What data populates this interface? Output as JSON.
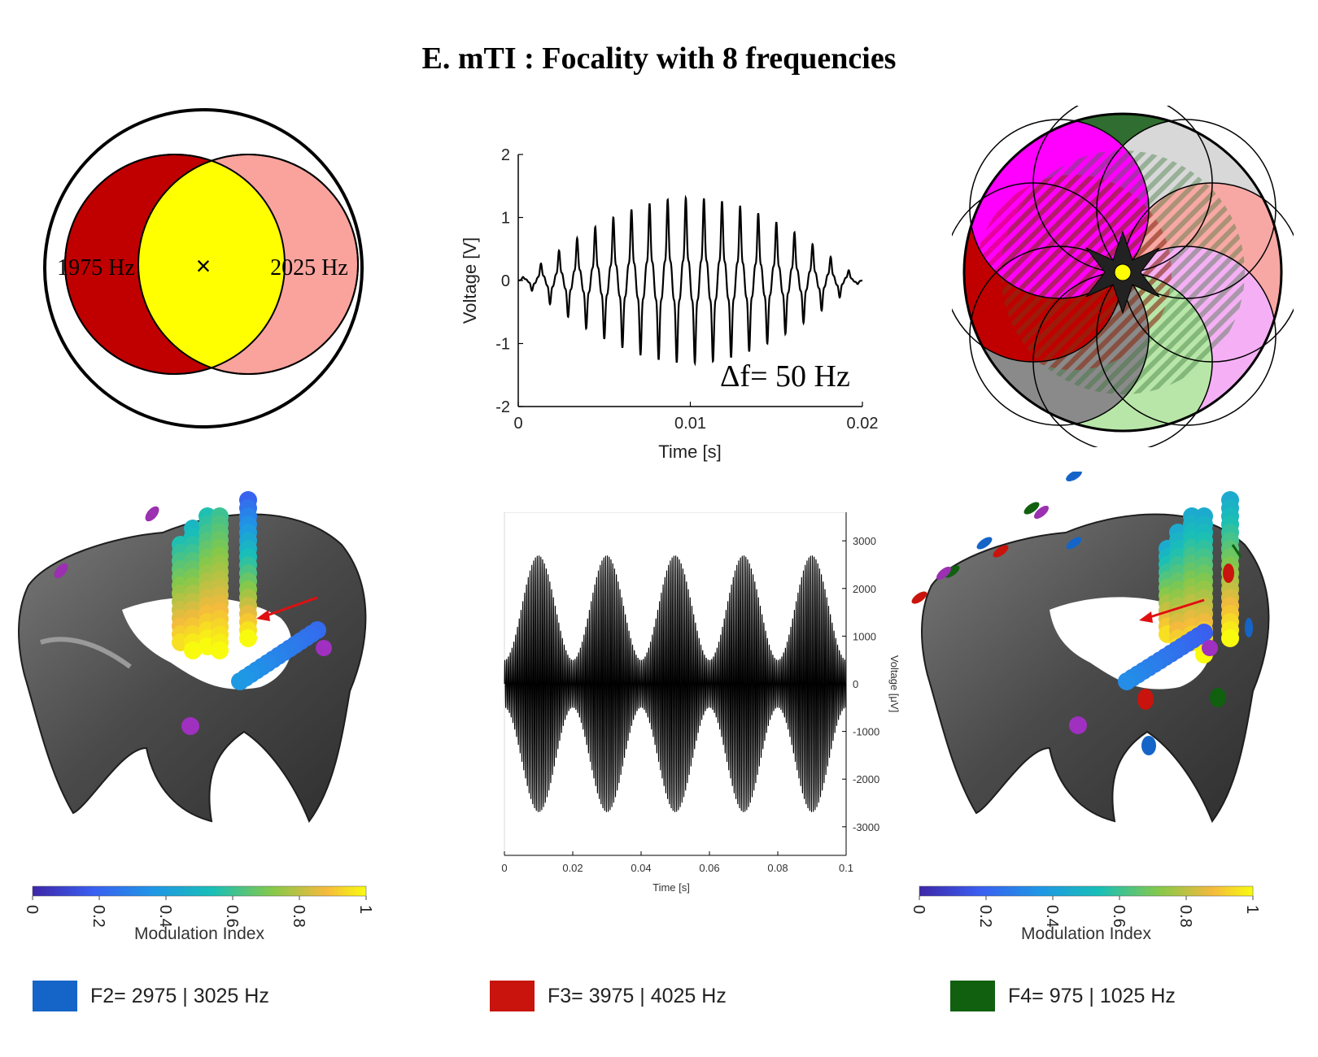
{
  "title": "E. mTI : Focality with 8 frequencies",
  "venn": {
    "left_label": "1975 Hz",
    "right_label": "2025 Hz",
    "center_mark": "×",
    "colors": {
      "left": "#c00000",
      "right": "#f9a39c",
      "overlap": "#ffff00"
    }
  },
  "beat_plot": {
    "annotation": "Δf= 50 Hz",
    "xlabel": "Time [s]",
    "ylabel": "Voltage [V]",
    "xticks": [
      "0",
      "0.01",
      "0.02"
    ],
    "yticks": [
      "2",
      "1",
      "0",
      "-1",
      "-2"
    ]
  },
  "modulated_plot": {
    "xlabel": "Time [s]",
    "ylabel": "Voltage [μV]",
    "xticks": [
      "0",
      "0.02",
      "0.04",
      "0.06",
      "0.08",
      "0.1"
    ],
    "yticks": [
      "3000",
      "2000",
      "1000",
      "0",
      "-1000",
      "-2000",
      "-3000"
    ]
  },
  "colorbar": {
    "label": "Modulation Index",
    "ticks": [
      "0",
      "0.2",
      "0.4",
      "0.6",
      "0.8",
      "1"
    ]
  },
  "legend": [
    {
      "label": "F2= 2975 | 3025 Hz",
      "color": "#1565c8"
    },
    {
      "label": "F3= 3975 | 4025 Hz",
      "color": "#c8140c"
    },
    {
      "label": "F4=  975 | 1025 Hz",
      "color": "#106010"
    }
  ],
  "chart_data": [
    {
      "type": "line",
      "xlabel": "Time [s]",
      "ylabel": "Voltage [V]",
      "xlim": [
        0,
        0.02
      ],
      "ylim": [
        -2,
        2
      ],
      "series": [
        {
          "x": [
            0,
            0.0025,
            0.005,
            0.0075,
            0.01,
            0.0125,
            0.015,
            0.0175,
            0.02
          ],
          "y": [
            0,
            0.55,
            1.1,
            1.45,
            1.6,
            1.45,
            1.1,
            0.55,
            0
          ]
        }
      ]
    },
    {
      "type": "line",
      "xlabel": "Time [s]",
      "ylabel": "Voltage [μV]",
      "xlim": [
        0,
        0.1
      ],
      "ylim": [
        -3000,
        3000
      ],
      "series": [
        {
          "x": [
            0,
            0.01,
            0.02,
            0.03,
            0.04,
            0.05,
            0.06,
            0.07,
            0.08,
            0.09,
            0.1
          ],
          "y": [
            500,
            2700,
            500,
            2700,
            500,
            2700,
            500,
            2700,
            500,
            2700,
            500
          ]
        }
      ]
    }
  ]
}
